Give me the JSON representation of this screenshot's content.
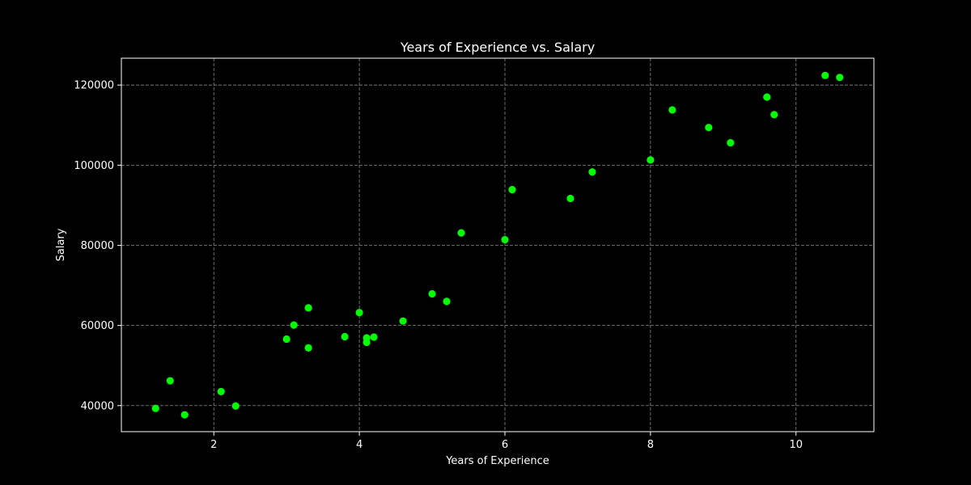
{
  "chart_data": {
    "type": "scatter",
    "title": "Years of Experience vs. Salary",
    "xlabel": "Years of Experience",
    "ylabel": "Salary",
    "xlim": [
      0.73,
      11.07
    ],
    "ylim": [
      33500,
      126700
    ],
    "xticks": [
      2,
      4,
      6,
      8,
      10
    ],
    "xtick_labels": [
      "2",
      "4",
      "6",
      "8",
      "10"
    ],
    "yticks": [
      40000,
      60000,
      80000,
      100000,
      120000
    ],
    "ytick_labels": [
      "40000",
      "60000",
      "80000",
      "100000",
      "120000"
    ],
    "grid": true,
    "background_color": "#000000",
    "text_color": "#ffffff",
    "grid_color": "#8a8a8a",
    "series": [
      {
        "color": "#00ff00",
        "points": [
          {
            "x": 1.2,
            "y": 39300
          },
          {
            "x": 1.4,
            "y": 46200
          },
          {
            "x": 1.6,
            "y": 37700
          },
          {
            "x": 2.1,
            "y": 43500
          },
          {
            "x": 2.3,
            "y": 39900
          },
          {
            "x": 3.0,
            "y": 56600
          },
          {
            "x": 3.1,
            "y": 60100
          },
          {
            "x": 3.3,
            "y": 54400
          },
          {
            "x": 3.3,
            "y": 64400
          },
          {
            "x": 3.8,
            "y": 57200
          },
          {
            "x": 4.0,
            "y": 63200
          },
          {
            "x": 4.1,
            "y": 55800
          },
          {
            "x": 4.1,
            "y": 56900
          },
          {
            "x": 4.2,
            "y": 57100
          },
          {
            "x": 4.6,
            "y": 61100
          },
          {
            "x": 5.0,
            "y": 67900
          },
          {
            "x": 5.2,
            "y": 66000
          },
          {
            "x": 5.4,
            "y": 83100
          },
          {
            "x": 6.0,
            "y": 81400
          },
          {
            "x": 6.1,
            "y": 93900
          },
          {
            "x": 6.9,
            "y": 91700
          },
          {
            "x": 7.2,
            "y": 98300
          },
          {
            "x": 8.0,
            "y": 101300
          },
          {
            "x": 8.3,
            "y": 113800
          },
          {
            "x": 8.8,
            "y": 109400
          },
          {
            "x": 9.1,
            "y": 105600
          },
          {
            "x": 9.6,
            "y": 117000
          },
          {
            "x": 9.7,
            "y": 112600
          },
          {
            "x": 10.4,
            "y": 122400
          },
          {
            "x": 10.6,
            "y": 121900
          }
        ]
      }
    ]
  }
}
